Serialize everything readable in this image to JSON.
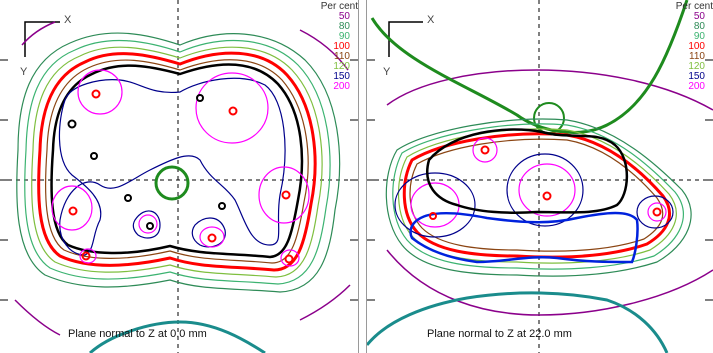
{
  "left_panel": {
    "axis_x_label": "X",
    "axis_y_label": "Y",
    "legend_title": "Per cent",
    "legend_levels": [
      "50",
      "80",
      "90",
      "100",
      "110",
      "120",
      "150",
      "200"
    ],
    "caption": "Plane normal to Z at   0.0 mm"
  },
  "right_panel": {
    "axis_x_label": "X",
    "axis_y_label": "Y",
    "legend_title": "Per cent",
    "legend_levels": [
      "50",
      "80",
      "90",
      "100",
      "110",
      "120",
      "150",
      "200"
    ],
    "caption": "Plane normal to Z at  22.0 mm"
  },
  "colors": {
    "50": "#8b008b",
    "80": "#2e8b57",
    "90": "#3cb371",
    "100": "#ff0000",
    "110": "#8b4513",
    "120": "#7fbf3f",
    "150": "#00008b",
    "200": "#ff00ff"
  }
}
